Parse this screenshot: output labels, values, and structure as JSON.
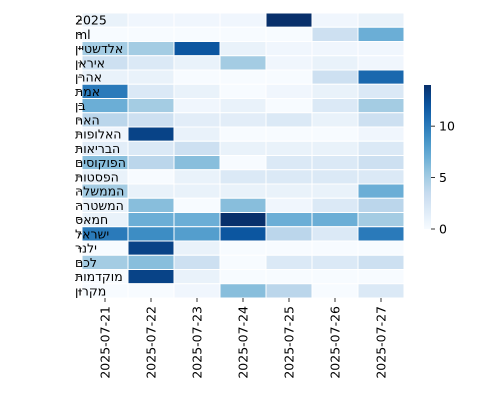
{
  "chart_data": {
    "type": "heatmap",
    "title": "",
    "xlabel": "",
    "ylabel": "",
    "x_categories": [
      "2025-07-21",
      "2025-07-22",
      "2025-07-23",
      "2025-07-24",
      "2025-07-25",
      "2025-07-26",
      "2025-07-27"
    ],
    "y_categories": [
      "2025",
      "ml",
      "אלדשטיין",
      "איראן",
      "אהרן",
      "אמת",
      "בן",
      "האח",
      "האלופות",
      "הבריאות",
      "הפוקוסים",
      "הפסטות",
      "הממשלה",
      "המשטרה",
      "חמאס",
      "ישראל",
      "ילנר",
      "לכם",
      "מוקדמות",
      "מקרון"
    ],
    "values": [
      [
        1,
        0.5,
        0.5,
        0.5,
        14,
        0.5,
        1
      ],
      [
        0,
        0,
        0,
        0,
        0,
        3,
        7
      ],
      [
        5,
        5,
        12,
        1,
        0.5,
        0.5,
        0.5
      ],
      [
        3,
        2,
        1,
        5,
        0.5,
        1,
        0.5
      ],
      [
        1,
        1,
        0,
        0,
        0,
        3,
        11
      ],
      [
        10,
        2,
        1,
        0,
        0.5,
        1,
        2
      ],
      [
        7,
        5,
        0.5,
        1,
        0,
        2,
        5
      ],
      [
        4,
        3,
        1.5,
        1.5,
        2,
        1,
        3
      ],
      [
        0.5,
        13,
        1,
        0,
        0,
        0,
        0.5
      ],
      [
        1.5,
        2,
        3,
        1,
        1,
        1,
        2
      ],
      [
        6,
        4,
        6,
        0,
        2,
        2,
        3
      ],
      [
        1,
        0,
        1,
        2,
        2,
        2,
        2
      ],
      [
        5,
        1,
        1,
        1,
        1,
        1,
        7
      ],
      [
        1,
        6,
        0,
        6,
        0.5,
        2,
        4
      ],
      [
        1,
        7,
        7,
        14,
        7,
        7,
        5
      ],
      [
        10,
        9,
        8,
        12,
        4,
        2,
        10
      ],
      [
        0,
        13,
        1,
        0,
        0,
        0,
        0
      ],
      [
        5,
        6,
        3,
        0,
        2,
        2,
        3
      ],
      [
        0,
        13,
        1,
        0,
        0,
        0,
        0
      ],
      [
        0,
        0,
        0.5,
        6,
        4,
        0,
        2
      ]
    ],
    "colorbar": {
      "min": 0,
      "max": 14,
      "ticks": [
        0,
        5,
        10
      ]
    },
    "colormap": "Blues",
    "colors": {
      "low": "#f7fbff",
      "high": "#08306b",
      "grid": "#ffffff"
    },
    "grid": false,
    "legend": "none"
  }
}
